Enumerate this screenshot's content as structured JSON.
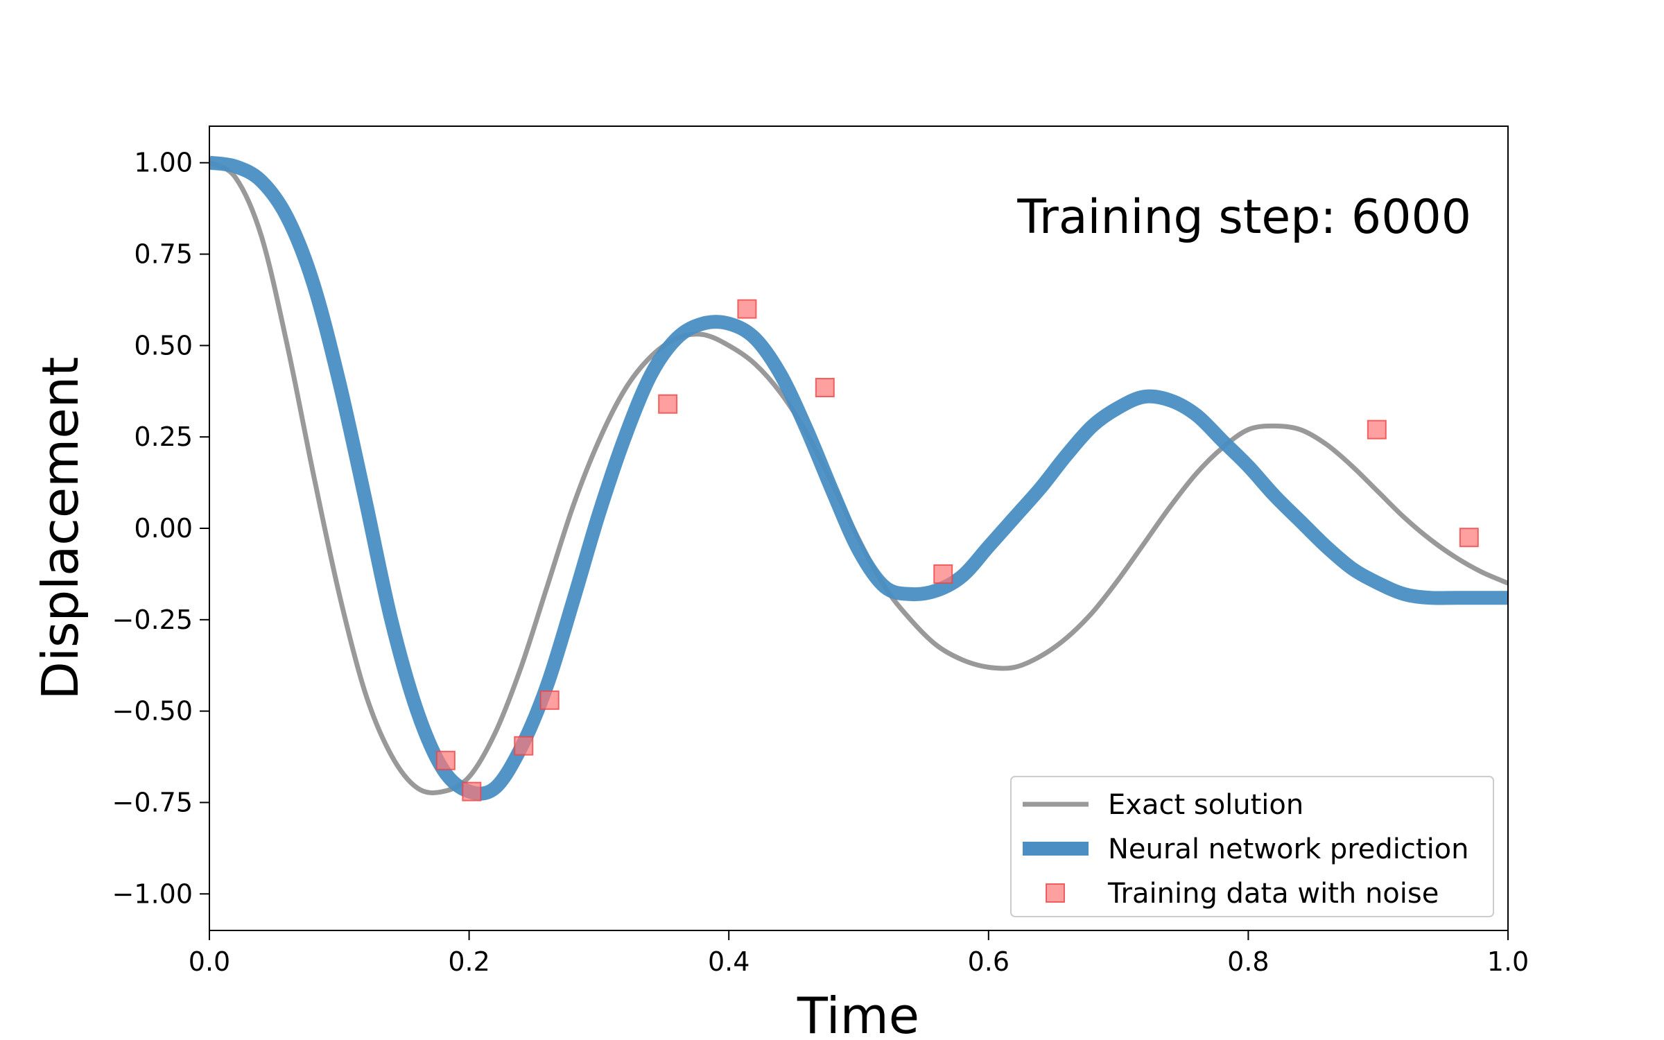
{
  "chart_data": {
    "type": "line",
    "title": "",
    "xlabel": "Time",
    "ylabel": "Displacement",
    "xlim": [
      0.0,
      1.0
    ],
    "ylim": [
      -1.1,
      1.1
    ],
    "xticks": [
      0.0,
      0.2,
      0.4,
      0.6,
      0.8,
      1.0
    ],
    "xtick_labels": [
      "0.0",
      "0.2",
      "0.4",
      "0.6",
      "0.8",
      "1.0"
    ],
    "yticks": [
      1.0,
      0.75,
      0.5,
      0.25,
      0.0,
      -0.25,
      -0.5,
      -0.75,
      -1.0
    ],
    "ytick_labels": [
      "1.00",
      "0.75",
      "0.50",
      "0.25",
      "0.00",
      "−0.25",
      "−0.50",
      "−0.75",
      "−1.00"
    ],
    "grid": false,
    "legend_position": "lower-right",
    "annotation": "Training step: 6000",
    "series": [
      {
        "name": "Exact solution",
        "kind": "line",
        "color": "#999999",
        "x": [
          0.0,
          0.02,
          0.04,
          0.06,
          0.08,
          0.1,
          0.12,
          0.14,
          0.16,
          0.18,
          0.2,
          0.22,
          0.24,
          0.26,
          0.28,
          0.3,
          0.32,
          0.34,
          0.36,
          0.38,
          0.4,
          0.42,
          0.44,
          0.46,
          0.48,
          0.5,
          0.52,
          0.54,
          0.56,
          0.58,
          0.6,
          0.62,
          0.64,
          0.66,
          0.68,
          0.7,
          0.72,
          0.74,
          0.76,
          0.78,
          0.8,
          0.82,
          0.84,
          0.86,
          0.88,
          0.9,
          0.92,
          0.94,
          0.96,
          0.98,
          1.0
        ],
        "y": [
          1.0,
          0.96,
          0.8,
          0.5,
          0.15,
          -0.18,
          -0.45,
          -0.62,
          -0.71,
          -0.72,
          -0.68,
          -0.56,
          -0.38,
          -0.16,
          0.06,
          0.24,
          0.38,
          0.47,
          0.52,
          0.53,
          0.5,
          0.45,
          0.37,
          0.26,
          0.12,
          -0.03,
          -0.16,
          -0.25,
          -0.32,
          -0.36,
          -0.38,
          -0.38,
          -0.35,
          -0.3,
          -0.23,
          -0.14,
          -0.04,
          0.06,
          0.15,
          0.22,
          0.27,
          0.28,
          0.27,
          0.23,
          0.17,
          0.1,
          0.03,
          -0.03,
          -0.08,
          -0.12,
          -0.15
        ]
      },
      {
        "name": "Neural network prediction",
        "kind": "line",
        "color": "#4a8ec4",
        "x": [
          0.0,
          0.02,
          0.04,
          0.06,
          0.08,
          0.1,
          0.12,
          0.14,
          0.16,
          0.18,
          0.2,
          0.22,
          0.24,
          0.26,
          0.28,
          0.3,
          0.32,
          0.34,
          0.36,
          0.38,
          0.4,
          0.42,
          0.44,
          0.46,
          0.48,
          0.5,
          0.52,
          0.54,
          0.56,
          0.58,
          0.6,
          0.62,
          0.64,
          0.66,
          0.68,
          0.7,
          0.72,
          0.74,
          0.76,
          0.78,
          0.8,
          0.82,
          0.84,
          0.86,
          0.88,
          0.9,
          0.92,
          0.94,
          0.96,
          0.98,
          1.0
        ],
        "y": [
          1.0,
          0.99,
          0.95,
          0.85,
          0.67,
          0.4,
          0.08,
          -0.25,
          -0.5,
          -0.66,
          -0.72,
          -0.71,
          -0.6,
          -0.43,
          -0.2,
          0.04,
          0.25,
          0.42,
          0.52,
          0.56,
          0.56,
          0.52,
          0.42,
          0.27,
          0.1,
          -0.06,
          -0.16,
          -0.18,
          -0.17,
          -0.13,
          -0.05,
          0.03,
          0.11,
          0.2,
          0.28,
          0.33,
          0.36,
          0.35,
          0.31,
          0.24,
          0.17,
          0.09,
          0.02,
          -0.05,
          -0.11,
          -0.15,
          -0.18,
          -0.19,
          -0.19,
          -0.19,
          -0.19
        ]
      },
      {
        "name": "Training data with noise",
        "kind": "scatter",
        "color": "#ff7777",
        "x": [
          0.182,
          0.202,
          0.242,
          0.262,
          0.353,
          0.414,
          0.474,
          0.565,
          0.899,
          0.97
        ],
        "y": [
          -0.635,
          -0.72,
          -0.595,
          -0.47,
          0.34,
          0.6,
          0.385,
          -0.125,
          0.27,
          -0.025
        ]
      }
    ]
  }
}
